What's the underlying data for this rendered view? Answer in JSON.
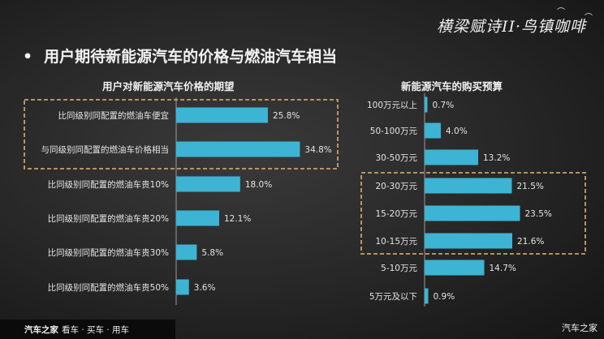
{
  "headline": {
    "bullet": "•",
    "text": "用户期待新能源汽车的价格与燃油汽车相当"
  },
  "logo_art": {
    "text": "横梁赋诗II·鸟镇咖啡"
  },
  "footer": {
    "brand": "汽车之家",
    "tagline": "看车 · 买车 · 用车",
    "watermark": "汽车之家"
  },
  "colors": {
    "bar": "#3db4d3",
    "highlight_box": "#c8a26a"
  },
  "chart_data": [
    {
      "type": "bar",
      "orientation": "horizontal",
      "title": "用户对新能源汽车价格的期望",
      "categories": [
        "比同级别同配置的燃油车便宜",
        "与同级别同配置的燃油车价格相当",
        "比同级别同配置的燃油车贵10%",
        "比同级别同配置的燃油车贵20%",
        "比同级别同配置的燃油车贵30%",
        "比同级别同配置的燃油车贵50%"
      ],
      "values": [
        25.8,
        34.8,
        18.0,
        12.1,
        5.8,
        3.6
      ],
      "labels": [
        "25.8%",
        "34.8%",
        "18.0%",
        "12.1%",
        "5.8%",
        "3.6%"
      ],
      "unit": "%",
      "xlim": [
        0,
        40
      ],
      "highlighted": [
        0,
        1
      ]
    },
    {
      "type": "bar",
      "orientation": "horizontal",
      "title": "新能源汽车的购买预算",
      "categories": [
        "100万元以上",
        "50-100万元",
        "30-50万元",
        "20-30万元",
        "15-20万元",
        "10-15万元",
        "5-10万元",
        "5万元及以下"
      ],
      "values": [
        0.7,
        4.0,
        13.2,
        21.5,
        23.5,
        21.6,
        14.7,
        0.9
      ],
      "labels": [
        "0.7%",
        "4.0%",
        "13.2%",
        "21.5%",
        "23.5%",
        "21.6%",
        "14.7%",
        "0.9%"
      ],
      "unit": "%",
      "xlim": [
        0,
        28
      ],
      "highlighted": [
        3,
        4,
        5
      ]
    }
  ]
}
